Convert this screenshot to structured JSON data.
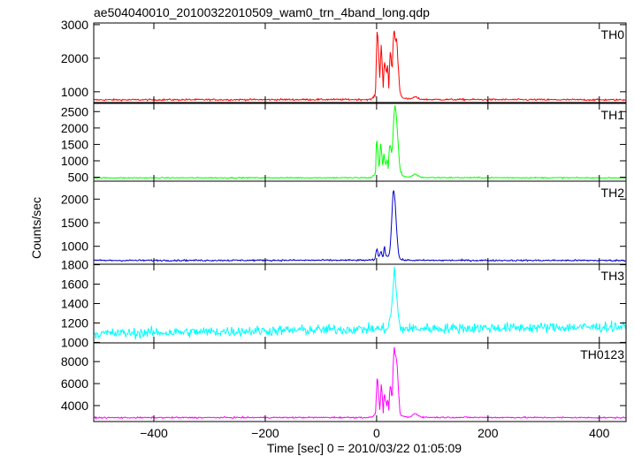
{
  "chart_data": {
    "type": "line",
    "title": "ae504040010_20100322010509_wam0_trn_4band_long.qdp",
    "xlabel": "Time [sec] 0 = 2010/03/22 01:05:09",
    "ylabel": "Counts/sec",
    "xlim": [
      -508,
      448
    ],
    "xticks": [
      -400,
      -200,
      0,
      200,
      400
    ],
    "grid": false,
    "panels": [
      {
        "name": "TH0",
        "color": "#ff0000",
        "ylim": [
          680,
          3050
        ],
        "yticks": [
          1000,
          2000,
          3000
        ],
        "baseline": 760,
        "noise": 18,
        "burst_x": [
          -508,
          -10,
          -2,
          1,
          4,
          6,
          8,
          10,
          12,
          14,
          16,
          18,
          20,
          22,
          24,
          26,
          28,
          30,
          32,
          34,
          36,
          38,
          40,
          42,
          44,
          46,
          50,
          55,
          60,
          65,
          70,
          75,
          80,
          90,
          448
        ],
        "burst_y": [
          760,
          770,
          900,
          3000,
          2100,
          1300,
          2500,
          1900,
          1100,
          2000,
          1700,
          1500,
          1800,
          1100,
          2200,
          2000,
          1600,
          2700,
          2800,
          2500,
          2600,
          2000,
          1500,
          1000,
          900,
          850,
          800,
          790,
          780,
          820,
          850,
          800,
          780,
          770,
          760
        ]
      },
      {
        "name": "TH1",
        "color": "#00ff00",
        "ylim": [
          380,
          2750
        ],
        "yticks": [
          500,
          1000,
          1500,
          2000,
          2500
        ],
        "baseline": 480,
        "noise": 12,
        "burst_x": [
          -508,
          -10,
          -2,
          0,
          3,
          5,
          7,
          9,
          11,
          13,
          15,
          17,
          19,
          21,
          23,
          25,
          27,
          29,
          31,
          33,
          35,
          37,
          39,
          41,
          43,
          46,
          50,
          55,
          60,
          65,
          70,
          75,
          80,
          90,
          448
        ],
        "burst_y": [
          480,
          485,
          600,
          1800,
          1100,
          700,
          1500,
          1300,
          800,
          1200,
          1000,
          900,
          1100,
          700,
          1500,
          1400,
          1200,
          1600,
          2400,
          2700,
          2500,
          2000,
          1500,
          900,
          700,
          560,
          520,
          500,
          500,
          560,
          600,
          540,
          500,
          490,
          480
        ]
      },
      {
        "name": "TH2",
        "color": "#0000cc",
        "ylim": [
          620,
          2380
        ],
        "yticks": [
          1000,
          1500,
          2000
        ],
        "baseline": 700,
        "noise": 12,
        "burst_x": [
          -508,
          -10,
          -3,
          0,
          2,
          4,
          6,
          8,
          10,
          12,
          14,
          16,
          18,
          20,
          22,
          24,
          26,
          28,
          30,
          32,
          34,
          36,
          38,
          40,
          42,
          44,
          48,
          55,
          70,
          448
        ],
        "burst_y": [
          700,
          705,
          720,
          950,
          880,
          760,
          850,
          900,
          800,
          780,
          1000,
          850,
          800,
          780,
          820,
          900,
          1300,
          1800,
          2300,
          2100,
          1800,
          1400,
          1000,
          800,
          740,
          720,
          710,
          705,
          702,
          700
        ]
      },
      {
        "name": "TH3",
        "color": "#00ffff",
        "ylim": [
          995,
          1805
        ],
        "yticks": [
          1000,
          1200,
          1400,
          1600,
          1800
        ],
        "noise": 38,
        "trend_x": [
          -508,
          -300,
          -100,
          0,
          448
        ],
        "trend_y": [
          1090,
          1110,
          1130,
          1140,
          1160
        ],
        "burst_x": [
          -508,
          18,
          22,
          26,
          28,
          30,
          32,
          34,
          36,
          38,
          40,
          42,
          44,
          448
        ],
        "burst_y": [
          0,
          0,
          40,
          150,
          300,
          450,
          620,
          500,
          330,
          180,
          80,
          20,
          0,
          0
        ]
      },
      {
        "name": "TH0123",
        "color": "#ff00ff",
        "ylim": [
          2550,
          9700
        ],
        "yticks": [
          4000,
          6000,
          8000
        ],
        "baseline": 2900,
        "noise": 45,
        "burst_x": [
          -508,
          -10,
          -2,
          1,
          4,
          6,
          8,
          10,
          12,
          14,
          16,
          18,
          20,
          22,
          24,
          26,
          28,
          30,
          32,
          34,
          36,
          38,
          40,
          42,
          44,
          46,
          50,
          55,
          60,
          65,
          70,
          75,
          80,
          90,
          448
        ],
        "burst_y": [
          2900,
          2920,
          3200,
          6800,
          4800,
          3400,
          6100,
          5000,
          3300,
          5200,
          4600,
          4000,
          4700,
          3500,
          5700,
          5300,
          4600,
          8200,
          9300,
          8500,
          8200,
          6500,
          4800,
          3400,
          3100,
          3050,
          3000,
          2950,
          2950,
          3150,
          3300,
          3100,
          2980,
          2930,
          2900
        ]
      }
    ]
  }
}
